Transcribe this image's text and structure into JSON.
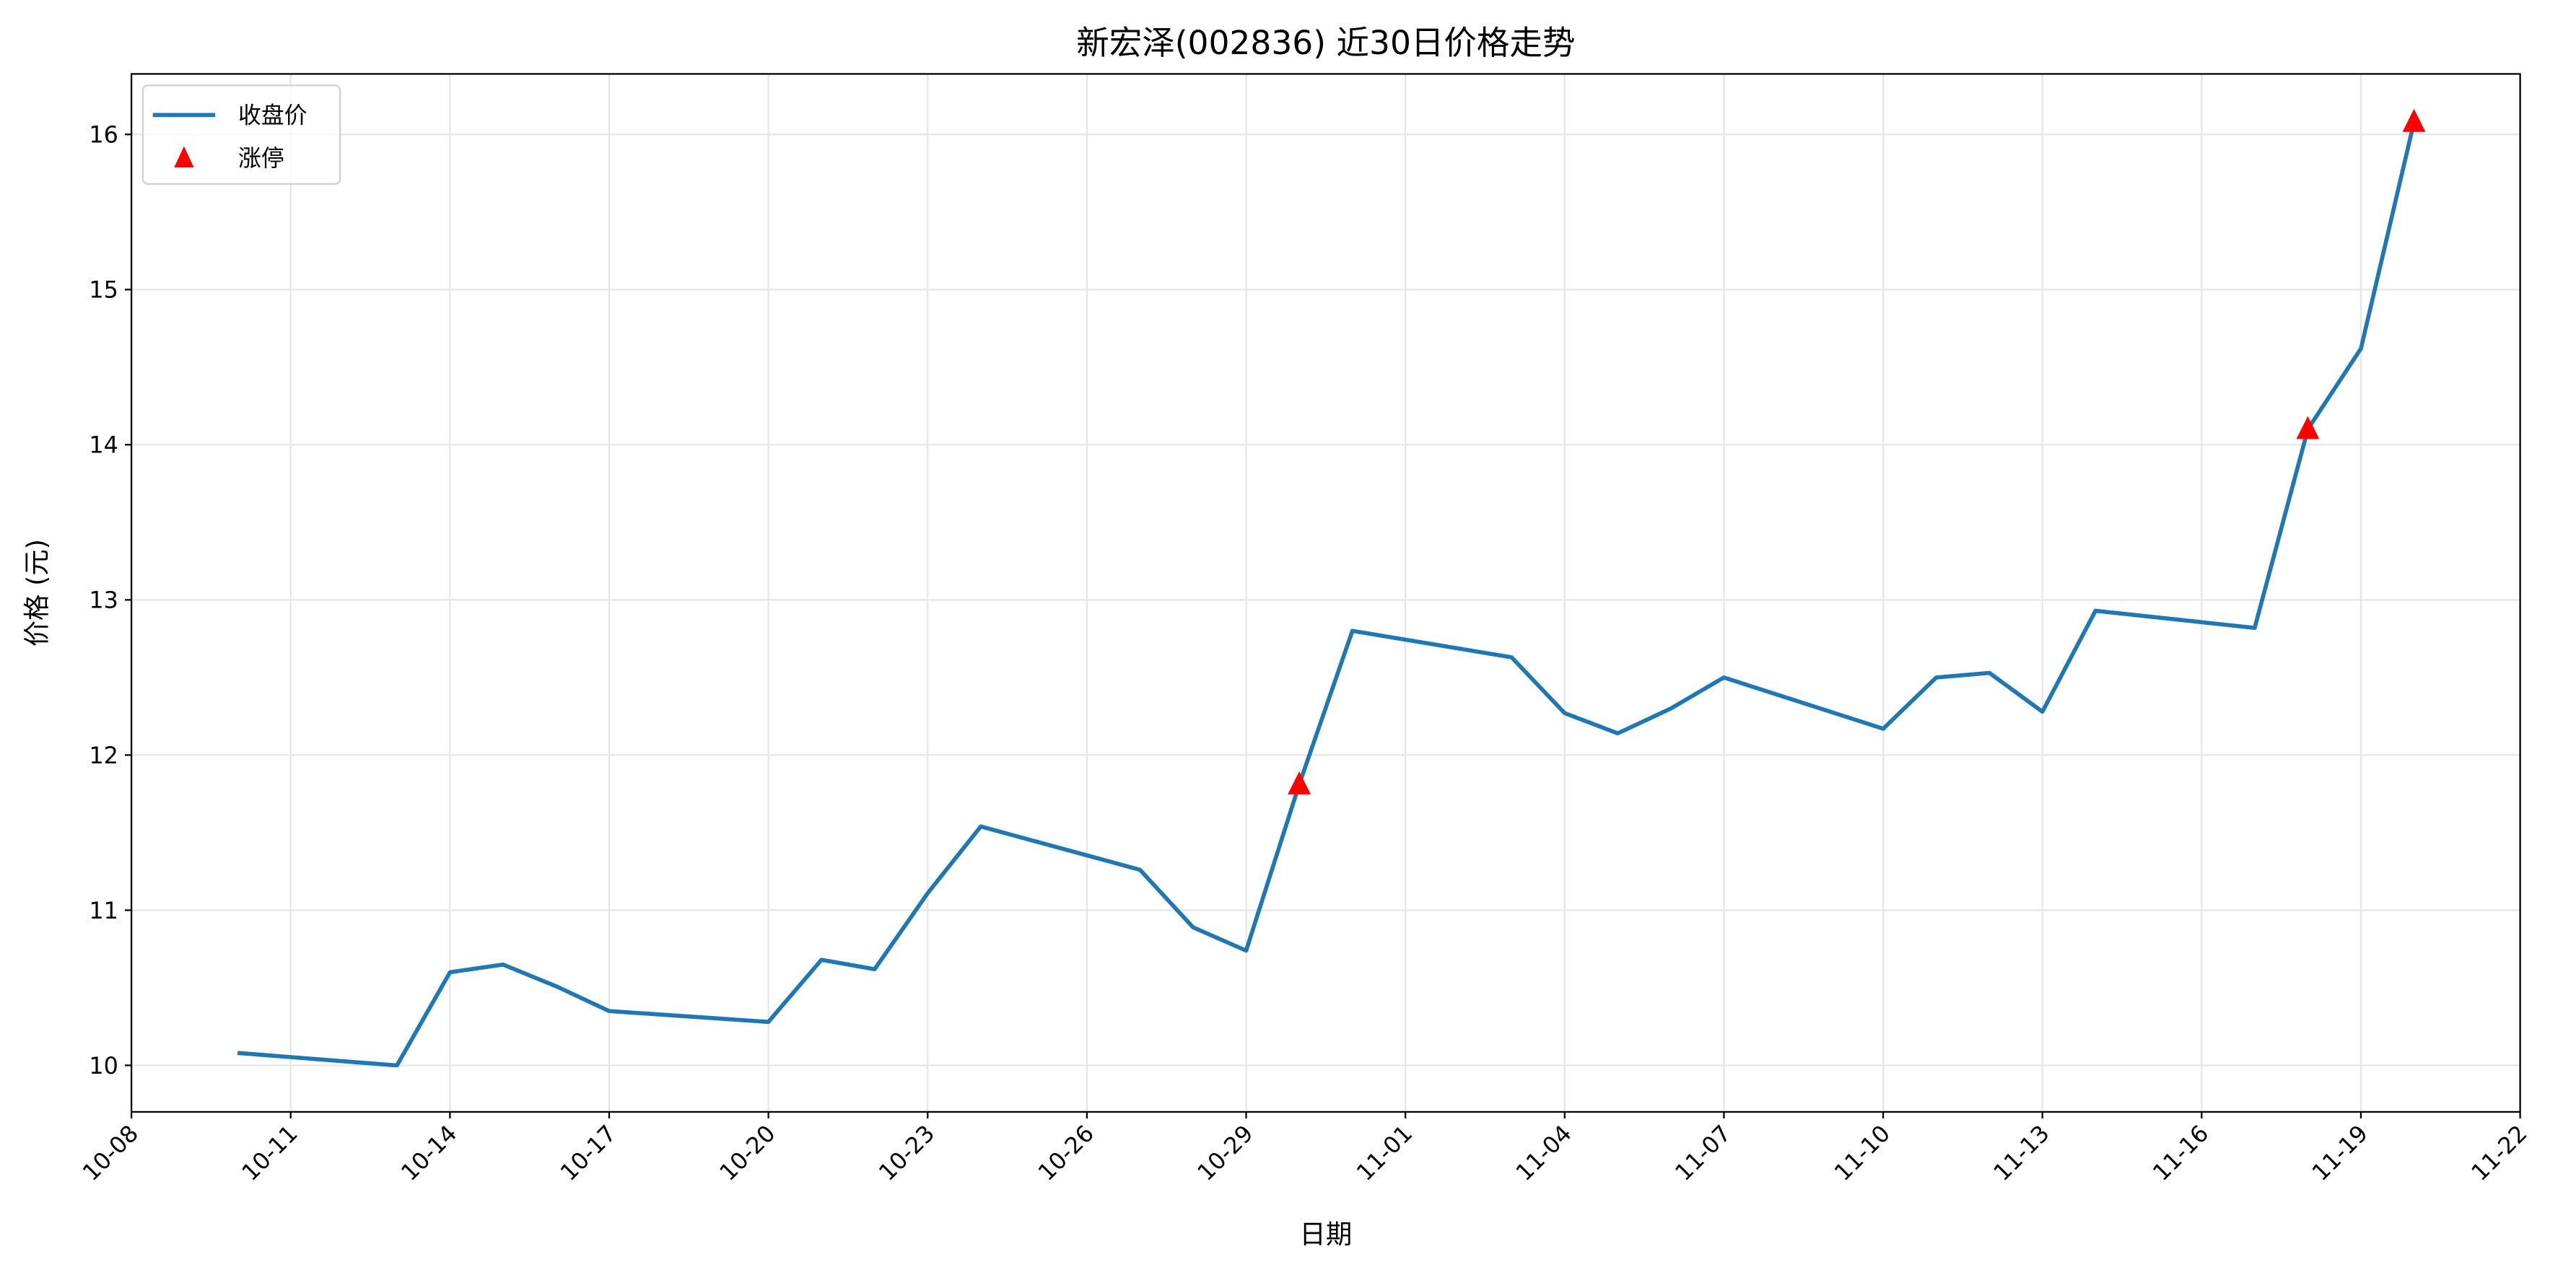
{
  "chart_data": {
    "type": "line",
    "title": "新宏泽(002836) 近30日价格走势",
    "xlabel": "日期",
    "ylabel": "价格 (元)",
    "xlim": [
      "2025-10-08",
      "2025-11-22"
    ],
    "ylim": [
      9.7,
      16.39
    ],
    "yticks": [
      10,
      11,
      12,
      13,
      14,
      15,
      16
    ],
    "xtick_labels": [
      "10-08",
      "10-11",
      "10-14",
      "10-17",
      "10-20",
      "10-23",
      "10-26",
      "10-29",
      "11-01",
      "11-04",
      "11-07",
      "11-10",
      "11-13",
      "11-16",
      "11-19",
      "11-22"
    ],
    "xtick_dates": [
      "2025-10-08",
      "2025-10-11",
      "2025-10-14",
      "2025-10-17",
      "2025-10-20",
      "2025-10-23",
      "2025-10-26",
      "2025-10-29",
      "2025-11-01",
      "2025-11-04",
      "2025-11-07",
      "2025-11-10",
      "2025-11-13",
      "2025-11-16",
      "2025-11-19",
      "2025-11-22"
    ],
    "grid": true,
    "legend_position": "top-left",
    "series": [
      {
        "name": "收盘价",
        "color": "#1f77b4",
        "x": [
          "2025-10-10",
          "2025-10-13",
          "2025-10-14",
          "2025-10-15",
          "2025-10-16",
          "2025-10-17",
          "2025-10-20",
          "2025-10-21",
          "2025-10-22",
          "2025-10-23",
          "2025-10-24",
          "2025-10-27",
          "2025-10-28",
          "2025-10-29",
          "2025-10-30",
          "2025-10-31",
          "2025-11-03",
          "2025-11-04",
          "2025-11-05",
          "2025-11-06",
          "2025-11-07",
          "2025-11-10",
          "2025-11-11",
          "2025-11-12",
          "2025-11-13",
          "2025-11-14",
          "2025-11-17",
          "2025-11-18",
          "2025-11-19",
          "2025-11-20"
        ],
        "y": [
          10.08,
          10.0,
          10.6,
          10.65,
          10.51,
          10.35,
          10.28,
          10.68,
          10.62,
          11.11,
          11.54,
          11.26,
          10.89,
          10.74,
          11.81,
          12.8,
          12.63,
          12.27,
          12.14,
          12.3,
          12.5,
          12.17,
          12.5,
          12.53,
          12.28,
          12.93,
          12.82,
          14.1,
          14.62,
          16.08
        ]
      },
      {
        "name": "涨停",
        "type": "scatter",
        "marker": "triangle-up",
        "color": "#ff0000",
        "x": [
          "2025-10-30",
          "2025-11-18",
          "2025-11-20"
        ],
        "y": [
          11.81,
          14.1,
          16.08
        ]
      }
    ]
  }
}
